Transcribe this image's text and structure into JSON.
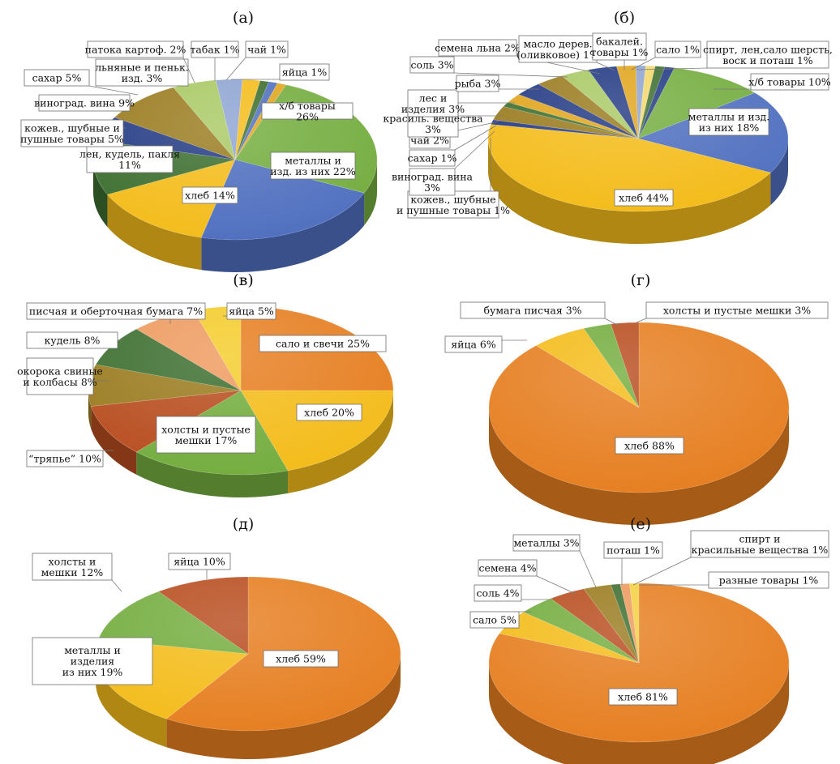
{
  "figure": {
    "palette": {
      "green": "#74ad3f",
      "blue": "#4f6fbf",
      "yellow": "#f4bc1a",
      "darkgreen": "#3c6e2f",
      "navy": "#233a84",
      "olive": "#9a7b1f",
      "lightgreen": "#a9c964",
      "lightblue": "#8ea4d2",
      "gold": "#e1a51d",
      "orange": "#e67e20",
      "rust": "#b84d1f",
      "salmon": "#ee9a5e"
    }
  },
  "chart_data": [
    {
      "id": "a",
      "type": "pie",
      "title": "(а)",
      "values": [
        26,
        22,
        14,
        11,
        5,
        9,
        5,
        3,
        2,
        1,
        1,
        1
      ],
      "labels": [
        "х/б товары 26%",
        "металлы и изд. из них 22%",
        "хлеб 14%",
        "лен, кудель, пакля 11%",
        "кожев., шубные и пушные товары 5%",
        "виноград. вина 9%",
        "сахар 5%",
        "льняные и пеньк. изд. 3%",
        "патока картоф. 2%",
        "табак 1%",
        "чай 1%",
        "яйца 1%"
      ],
      "colors": [
        "#74ad3f",
        "#4f6fbf",
        "#f4bc1a",
        "#3c6e2f",
        "#233a84",
        "#9a7b1f",
        "#a9c964",
        "#8ea4d2",
        "#f4bc1a",
        "#3c6e2f",
        "#4f6fbf",
        "#e1a51d"
      ]
    },
    {
      "id": "b",
      "type": "pie",
      "title": "(б)",
      "values": [
        10,
        18,
        44,
        1,
        3,
        1,
        2,
        3,
        3,
        3,
        3,
        2,
        1,
        1,
        1,
        1
      ],
      "labels": [
        "х/б товары 10%",
        "металлы и изд. из них 18%",
        "хлеб 44%",
        "кожев., шубные и пушные товары 1%",
        "виноград. вина 3%",
        "сахар 1%",
        "чай 2%",
        "красиль. вещества 3%",
        "лес и изделия 3%",
        "рыба 3%",
        "соль 3%",
        "семена льна 2%",
        "масло дерев. (оливковое) 1%",
        "бакалей. товары 1%",
        "сало 1%",
        "спирт, лен,сало шерсть, воск и поташ 1%"
      ],
      "colors": [
        "#74ad3f",
        "#4f6fbf",
        "#f4bc1a",
        "#233a84",
        "#9a7b1f",
        "#3c6e2f",
        "#e1a51d",
        "#233a84",
        "#9a7b1f",
        "#a9c964",
        "#233a84",
        "#e1a51d",
        "#8ea4d2",
        "#f4d86a",
        "#3c6e2f",
        "#233a84"
      ]
    },
    {
      "id": "v",
      "type": "pie",
      "title": "(в)",
      "values": [
        25,
        20,
        17,
        10,
        8,
        8,
        7,
        5
      ],
      "labels": [
        "сало и свечи 25%",
        "хлеб 20%",
        "холсты и пустые мешки 17%",
        "“тряпье” 10%",
        "окорока свиные и колбасы 8%",
        "кудель 8%",
        "писчая и оберточная бумага 7%",
        "яйца 5%"
      ],
      "colors": [
        "#e67e20",
        "#f4bc1a",
        "#74ad3f",
        "#b84d1f",
        "#9a7b1f",
        "#3c6e2f",
        "#ee9a5e",
        "#f4cc2a"
      ]
    },
    {
      "id": "g",
      "type": "pie",
      "title": "(г)",
      "values": [
        88,
        6,
        3,
        3
      ],
      "labels": [
        "хлеб 88%",
        "яйца 6%",
        "бумага писчая 3%",
        "холсты и пустые мешки 3%"
      ],
      "colors": [
        "#e67e20",
        "#f4bc1a",
        "#74ad3f",
        "#b84d1f"
      ]
    },
    {
      "id": "d",
      "type": "pie",
      "title": "(д)",
      "values": [
        59,
        19,
        12,
        10
      ],
      "labels": [
        "хлеб 59%",
        "металлы и изделия из них 19%",
        "холсты и мешки 12%",
        "яйца 10%"
      ],
      "colors": [
        "#e67e20",
        "#f4bc1a",
        "#74ad3f",
        "#b84d1f"
      ]
    },
    {
      "id": "e",
      "type": "pie",
      "title": "(е)",
      "values": [
        81,
        5,
        4,
        4,
        3,
        1,
        1,
        1
      ],
      "labels": [
        "хлеб 81%",
        "сало 5%",
        "соль 4%",
        "семена 4%",
        "металлы 3%",
        "поташ 1%",
        "спирт и красильные вещества 1%",
        "разные товары 1%"
      ],
      "colors": [
        "#e67e20",
        "#f4bc1a",
        "#74ad3f",
        "#b84d1f",
        "#9a7b1f",
        "#3c6e2f",
        "#ee9a5e",
        "#f4d040"
      ]
    }
  ]
}
